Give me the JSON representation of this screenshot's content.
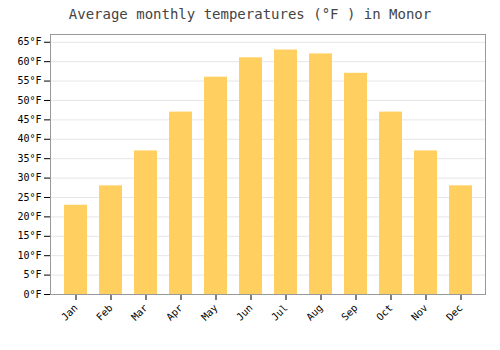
{
  "chart_data": {
    "type": "bar",
    "title": "Average monthly temperatures (°F ) in Monor",
    "categories": [
      "Jan",
      "Feb",
      "Mar",
      "Apr",
      "May",
      "Jun",
      "Jul",
      "Aug",
      "Sep",
      "Oct",
      "Nov",
      "Dec"
    ],
    "values": [
      23,
      28,
      37,
      47,
      56,
      61,
      63,
      62,
      57,
      47,
      37,
      28
    ],
    "color": "#FFD060",
    "ylim": [
      0,
      67
    ],
    "yticks": [
      {
        "value": 0,
        "label": "0°F"
      },
      {
        "value": 5,
        "label": "5°F"
      },
      {
        "value": 10,
        "label": "10°F"
      },
      {
        "value": 15,
        "label": "15°F"
      },
      {
        "value": 20,
        "label": "20°F"
      },
      {
        "value": 25,
        "label": "25°F"
      },
      {
        "value": 30,
        "label": "30°F"
      },
      {
        "value": 35,
        "label": "35°F"
      },
      {
        "value": 40,
        "label": "40°F"
      },
      {
        "value": 45,
        "label": "45°F"
      },
      {
        "value": 50,
        "label": "50°F"
      },
      {
        "value": 55,
        "label": "55°F"
      },
      {
        "value": 60,
        "label": "60°F"
      },
      {
        "value": 65,
        "label": "65°F"
      }
    ],
    "grid": true
  }
}
